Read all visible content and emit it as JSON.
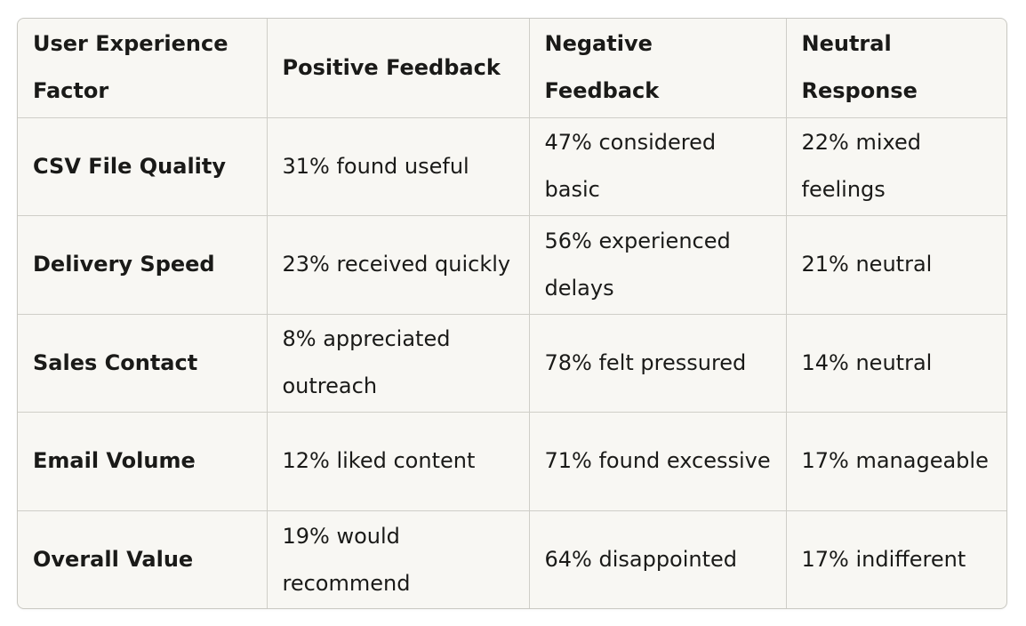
{
  "table": {
    "headers": [
      "User Experience Factor",
      "Positive Feedback",
      "Negative Feedback",
      "Neutral Response"
    ],
    "rows": [
      [
        "CSV File Quality",
        "31% found useful",
        "47% considered basic",
        "22% mixed feelings"
      ],
      [
        "Delivery Speed",
        "23% received quickly",
        "56% experienced delays",
        "21% neutral"
      ],
      [
        "Sales Contact",
        "8% appreciated outreach",
        "78% felt pressured",
        "14% neutral"
      ],
      [
        "Email Volume",
        "12% liked content",
        "71% found excessive",
        "17% manageable"
      ],
      [
        "Overall Value",
        "19% would recommend",
        "64% disappointed",
        "17% indifferent"
      ]
    ]
  }
}
